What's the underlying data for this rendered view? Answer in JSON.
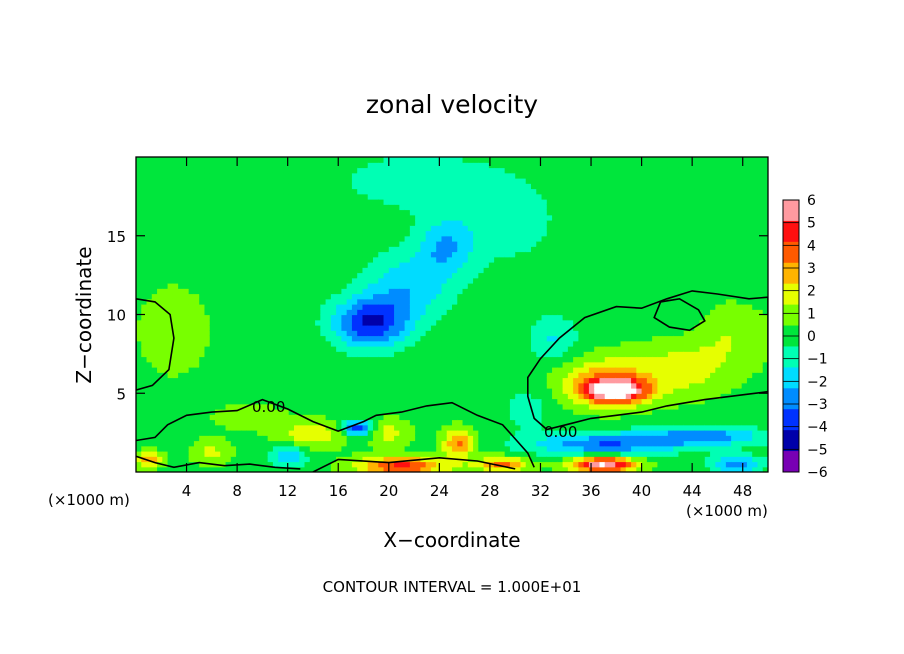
{
  "chart_data": {
    "type": "heatmap",
    "title": "zonal velocity",
    "xlabel": "X−coordinate",
    "ylabel": "Z−coordinate",
    "x_unit_left": "(×1000 m)",
    "x_unit_right": "(×1000 m)",
    "footer": "CONTOUR INTERVAL = 1.000E+01",
    "xlim": [
      0,
      50
    ],
    "ylim": [
      0,
      20
    ],
    "x_ticks": [
      4,
      8,
      12,
      16,
      20,
      24,
      28,
      32,
      36,
      40,
      44,
      48
    ],
    "y_ticks": [
      5,
      10,
      15
    ],
    "colorbar": {
      "min": -6,
      "max": 6,
      "tick_values": [
        6,
        5,
        4,
        3,
        2,
        1,
        0,
        -1,
        -2,
        -3,
        -4,
        -5,
        -6
      ],
      "tick_labels": [
        "6",
        "5",
        "4",
        "3",
        "2",
        "1",
        "0",
        "−1",
        "−2",
        "−3",
        "−4",
        "−5",
        "−6"
      ],
      "colors": [
        "#ff9aa0",
        "#ff1010",
        "#ff5a00",
        "#ffb400",
        "#e6ff00",
        "#78ff00",
        "#00e63c",
        "#00ffb4",
        "#00dcff",
        "#008cff",
        "#0032ff",
        "#0000aa",
        "#7800b4"
      ]
    },
    "background_value": 0.2,
    "features": [
      {
        "x": 18.5,
        "z": 9.5,
        "sx": 3.0,
        "sz": 1.6,
        "v": -4.6
      },
      {
        "x": 21.5,
        "z": 11.8,
        "sx": 3.5,
        "sz": 2.2,
        "v": -2.4
      },
      {
        "x": 24.5,
        "z": 14.3,
        "sx": 2.2,
        "sz": 1.8,
        "v": -2.3
      },
      {
        "x": 22,
        "z": 18.5,
        "sx": 6,
        "sz": 1.8,
        "v": -1.4
      },
      {
        "x": 29,
        "z": 16,
        "sx": 5,
        "sz": 3,
        "v": -1.2
      },
      {
        "x": 33,
        "z": 8.5,
        "sx": 2,
        "sz": 1.5,
        "v": -1.8
      },
      {
        "x": 3,
        "z": 9,
        "sx": 2.5,
        "sz": 2.5,
        "v": 1.1
      },
      {
        "x": 38,
        "z": 5.2,
        "sx": 2.4,
        "sz": 0.8,
        "v": 6.5
      },
      {
        "x": 37,
        "z": 5.8,
        "sx": 3.5,
        "sz": 1.5,
        "v": 2.8
      },
      {
        "x": 43,
        "z": 6.5,
        "sx": 3.5,
        "sz": 1.6,
        "v": 1.8
      },
      {
        "x": 47,
        "z": 8.5,
        "sx": 3,
        "sz": 2,
        "v": 1.2
      },
      {
        "x": 43,
        "z": 10,
        "sx": 2,
        "sz": 1,
        "v": -0.6
      },
      {
        "x": 17.5,
        "z": 2.8,
        "sx": 1.2,
        "sz": 0.5,
        "v": -4.5
      },
      {
        "x": 14,
        "z": 2.4,
        "sx": 2.5,
        "sz": 0.8,
        "v": 2.2
      },
      {
        "x": 20,
        "z": 2.5,
        "sx": 1.5,
        "sz": 0.8,
        "v": 1.8
      },
      {
        "x": 25.5,
        "z": 1.8,
        "sx": 1.2,
        "sz": 0.9,
        "v": 3.5
      },
      {
        "x": 21,
        "z": 0.4,
        "sx": 3.5,
        "sz": 0.6,
        "v": 4.5
      },
      {
        "x": 12,
        "z": 1,
        "sx": 1.5,
        "sz": 0.7,
        "v": -2.5
      },
      {
        "x": 6,
        "z": 1.3,
        "sx": 1.5,
        "sz": 0.8,
        "v": 1.5
      },
      {
        "x": 37,
        "z": 0.5,
        "sx": 2.5,
        "sz": 0.5,
        "v": 6.5
      },
      {
        "x": 37,
        "z": 1.8,
        "sx": 6,
        "sz": 0.7,
        "v": -3.6
      },
      {
        "x": 45,
        "z": 2.3,
        "sx": 5,
        "sz": 0.6,
        "v": -3.2
      },
      {
        "x": 29,
        "z": 0.5,
        "sx": 2,
        "sz": 0.5,
        "v": 3.5
      },
      {
        "x": 31,
        "z": 4,
        "sx": 2,
        "sz": 1.5,
        "v": -1.2
      },
      {
        "x": 9,
        "z": 3.5,
        "sx": 3,
        "sz": 0.8,
        "v": 0.9
      },
      {
        "x": 47.5,
        "z": 0.5,
        "sx": 2,
        "sz": 0.6,
        "v": -3.5
      },
      {
        "x": 1,
        "z": 0.8,
        "sx": 1,
        "sz": 0.5,
        "v": 3
      }
    ],
    "zero_contours": [
      {
        "label": "",
        "closed": true,
        "points": [
          [
            0,
            11
          ],
          [
            1.5,
            10.8
          ],
          [
            2.7,
            10
          ],
          [
            3,
            8.5
          ],
          [
            2.6,
            6.5
          ],
          [
            1.3,
            5.5
          ],
          [
            0,
            5.2
          ]
        ]
      },
      {
        "label": "",
        "closed": true,
        "points": [
          [
            31,
            6
          ],
          [
            32,
            7.2
          ],
          [
            33.5,
            8.5
          ],
          [
            35.5,
            9.8
          ],
          [
            38,
            10.5
          ],
          [
            40,
            10.4
          ],
          [
            42,
            11
          ],
          [
            44,
            11.5
          ],
          [
            46,
            11.3
          ],
          [
            48.5,
            11
          ],
          [
            50,
            11.1
          ],
          [
            50,
            5.1
          ],
          [
            48,
            4.9
          ],
          [
            45,
            4.6
          ],
          [
            42,
            4.2
          ],
          [
            40,
            3.8
          ],
          [
            38,
            3.6
          ],
          [
            36,
            3.4
          ],
          [
            34,
            3
          ],
          [
            32.5,
            2.7
          ],
          [
            31.5,
            3.4
          ],
          [
            31,
            4.8
          ]
        ]
      },
      {
        "label": "",
        "closed": true,
        "points": [
          [
            41,
            9.8
          ],
          [
            41.5,
            10.8
          ],
          [
            43,
            11
          ],
          [
            44.5,
            10.3
          ],
          [
            45,
            9.6
          ],
          [
            43.8,
            9
          ],
          [
            42.2,
            9.2
          ]
        ]
      },
      {
        "label": "0.00",
        "closed": false,
        "points": [
          [
            0,
            2
          ],
          [
            1.5,
            2.2
          ],
          [
            2.5,
            3
          ],
          [
            4,
            3.6
          ],
          [
            6,
            3.8
          ],
          [
            8,
            3.9
          ],
          [
            10,
            4.6
          ],
          [
            12,
            4
          ],
          [
            14,
            3.2
          ],
          [
            16,
            2.6
          ],
          [
            18,
            3.2
          ],
          [
            19,
            3.6
          ],
          [
            21,
            3.8
          ],
          [
            23,
            4.2
          ],
          [
            25,
            4.4
          ],
          [
            27,
            3.6
          ],
          [
            29,
            3
          ],
          [
            30,
            2.1
          ],
          [
            31,
            1.2
          ],
          [
            31.5,
            0.3
          ]
        ]
      },
      {
        "label": "",
        "closed": false,
        "points": [
          [
            0,
            1
          ],
          [
            1.5,
            0.6
          ],
          [
            3,
            0.3
          ],
          [
            5,
            0.6
          ],
          [
            7,
            0.4
          ],
          [
            9,
            0.5
          ],
          [
            11,
            0.3
          ],
          [
            13,
            0.2
          ]
        ]
      },
      {
        "label": "",
        "closed": false,
        "points": [
          [
            14,
            0
          ],
          [
            16,
            0.8
          ],
          [
            20,
            0.6
          ],
          [
            24,
            0.9
          ],
          [
            27,
            0.7
          ],
          [
            30,
            0.2
          ]
        ]
      }
    ],
    "contour_labels": [
      "0.00",
      "0.00"
    ]
  }
}
